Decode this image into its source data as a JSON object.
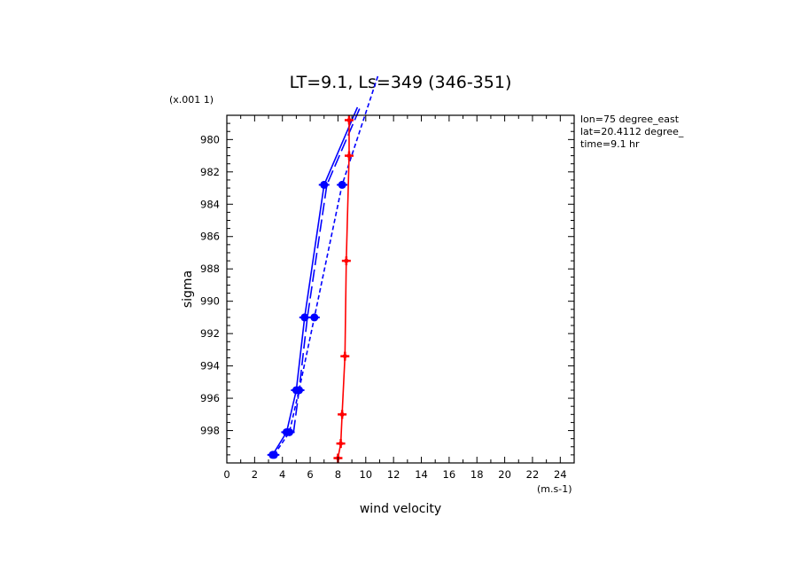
{
  "chart_data": {
    "type": "line",
    "title": "LT=9.1, Ls=349 (346-351)",
    "xlabel": "wind velocity",
    "ylabel": "sigma",
    "x_unit": "(m.s-1)",
    "y_unit": "(x.001 1)",
    "xlim": [
      0,
      25
    ],
    "ylim": [
      1000,
      978.5
    ],
    "x_ticks": [
      "0",
      "2",
      "4",
      "6",
      "8",
      "10",
      "12",
      "14",
      "16",
      "18",
      "20",
      "22",
      "24"
    ],
    "y_ticks": [
      "980",
      "982",
      "984",
      "986",
      "988",
      "990",
      "992",
      "994",
      "996",
      "998"
    ],
    "grid": false,
    "legend": "none",
    "info_lines": [
      "lon=75 degree_east",
      "lat=20.4112 degree_",
      "time=9.1 hr"
    ],
    "series": [
      {
        "color": "#0000ff",
        "style": "solid",
        "points": [
          [
            3.3,
            999.5
          ],
          [
            4.3,
            998.1
          ],
          [
            5.0,
            995.5
          ],
          [
            5.6,
            991.0
          ],
          [
            7.0,
            982.8
          ],
          [
            9.4,
            978.0
          ]
        ]
      },
      {
        "color": "#0000ff",
        "style": "dashed",
        "points": [
          [
            3.4,
            999.5
          ],
          [
            4.5,
            998.1
          ],
          [
            5.2,
            995.5
          ],
          [
            6.3,
            991.0
          ],
          [
            8.3,
            982.8
          ],
          [
            10.9,
            976.0
          ]
        ]
      },
      {
        "color": "#0000ff",
        "style": "longdash",
        "markers": false,
        "points": [
          [
            4.8,
            998.1
          ],
          [
            5.2,
            995.5
          ],
          [
            5.8,
            991.0
          ],
          [
            7.2,
            982.8
          ],
          [
            9.6,
            978.0
          ]
        ]
      },
      {
        "color": "#ff0000",
        "style": "solid",
        "points": [
          [
            8.0,
            999.7
          ],
          [
            8.2,
            998.8
          ],
          [
            8.3,
            997.0
          ],
          [
            8.5,
            993.4
          ],
          [
            8.6,
            987.5
          ],
          [
            8.8,
            981.0
          ],
          [
            8.8,
            978.8
          ]
        ]
      }
    ]
  }
}
